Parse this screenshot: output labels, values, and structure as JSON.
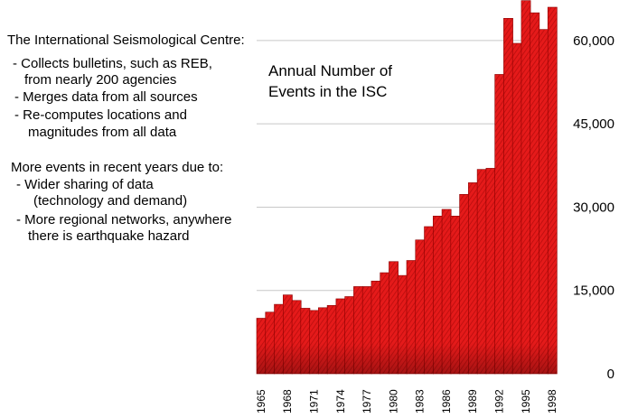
{
  "left_text": {
    "lines": [
      "The International Seismological Centre:",
      "- Collects bulletins, such as REB,",
      "from nearly 200 agencies",
      "- Merges data from all sources",
      "- Re-computes locations and",
      "magnitudes from all data",
      "More events in recent years due to:",
      "- Wider sharing of data",
      "(technology and demand)",
      "- More regional networks, anywhere",
      "there is earthquake hazard"
    ]
  },
  "chart_data": {
    "type": "bar",
    "title_lines": [
      "Annual Number of",
      "Events in the ISC"
    ],
    "xlabel": "",
    "ylabel": "",
    "ylim": [
      0,
      66000
    ],
    "yticks": [
      0,
      15000,
      30000,
      45000,
      60000
    ],
    "ytick_labels": [
      "0",
      "15,000",
      "30,000",
      "45,000",
      "60,000"
    ],
    "grid": true,
    "bar_color": "#e51a1a",
    "bar_edge_color": "#8c0000",
    "categories": [
      1965,
      1966,
      1967,
      1968,
      1969,
      1970,
      1971,
      1972,
      1973,
      1974,
      1975,
      1976,
      1977,
      1978,
      1979,
      1980,
      1981,
      1982,
      1983,
      1984,
      1985,
      1986,
      1987,
      1988,
      1989,
      1990,
      1991,
      1992,
      1993,
      1994,
      1995,
      1996,
      1997,
      1998
    ],
    "values": [
      10000,
      11100,
      12500,
      14200,
      13200,
      11800,
      11400,
      11900,
      12300,
      13500,
      13900,
      15700,
      15700,
      16700,
      18200,
      20200,
      17700,
      20400,
      24100,
      26500,
      28400,
      29600,
      28400,
      32300,
      34400,
      36800,
      37000,
      53900,
      64000,
      59500,
      67200,
      65000,
      62000,
      66000
    ],
    "xtick_labels": [
      "1965",
      "1968",
      "1971",
      "1974",
      "1977",
      "1980",
      "1983",
      "1986",
      "1989",
      "1992",
      "1995",
      "1998"
    ]
  }
}
